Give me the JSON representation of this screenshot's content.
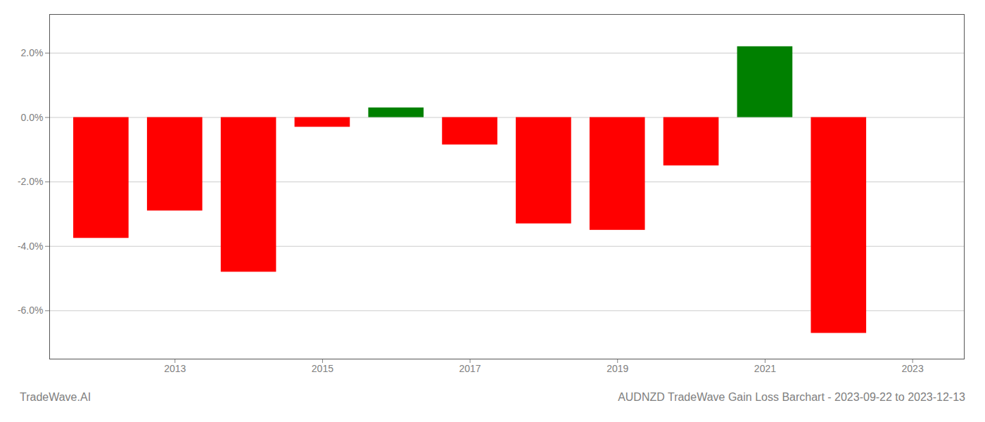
{
  "chart_data": {
    "type": "bar",
    "title": "AUDNZD TradeWave Gain Loss Barchart - 2023-09-22 to 2023-12-13",
    "annotations": [
      "TradeWave.AI"
    ],
    "x": [
      2012,
      2013,
      2014,
      2015,
      2016,
      2017,
      2018,
      2019,
      2020,
      2021,
      2022
    ],
    "values": [
      -0.0375,
      -0.029,
      -0.048,
      -0.003,
      0.003,
      -0.0085,
      -0.033,
      -0.035,
      -0.015,
      0.022,
      -0.067
    ],
    "colors": [
      "#ff0000",
      "#ff0000",
      "#ff0000",
      "#ff0000",
      "#008000",
      "#ff0000",
      "#ff0000",
      "#ff0000",
      "#ff0000",
      "#008000",
      "#ff0000"
    ],
    "xlim": [
      2011.3,
      2023.7
    ],
    "xticks": [
      2013,
      2015,
      2017,
      2019,
      2021,
      2023
    ],
    "ylim": [
      -0.075,
      0.032
    ],
    "yticks": [
      {
        "value": 0.02,
        "label": "2.0%"
      },
      {
        "value": 0.0,
        "label": "0.0%"
      },
      {
        "value": -0.02,
        "label": "-2.0%"
      },
      {
        "value": -0.04,
        "label": "-4.0%"
      },
      {
        "value": -0.06,
        "label": "-6.0%"
      }
    ],
    "grid": true
  }
}
